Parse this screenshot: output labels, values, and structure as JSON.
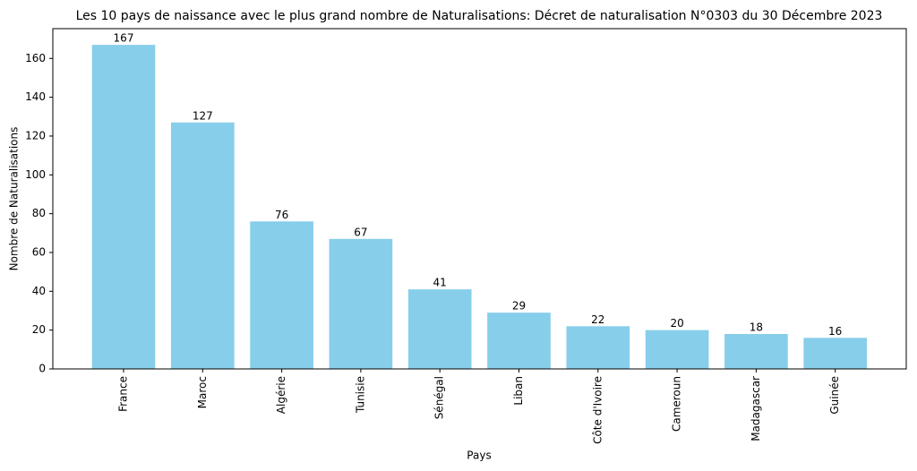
{
  "chart_data": {
    "type": "bar",
    "title": "Les 10 pays de naissance avec le plus grand nombre de Naturalisations: Décret de naturalisation N°0303 du 30 Décembre 2023",
    "x_label": "Pays",
    "y_label": "Nombre de Naturalisations",
    "categories": [
      "France",
      "Maroc",
      "Algérie",
      "Tunisie",
      "Sénégal",
      "Liban",
      "Côte d'Ivoire",
      "Cameroun",
      "Madagascar",
      "Guinée"
    ],
    "values": [
      167,
      127,
      76,
      67,
      41,
      29,
      22,
      20,
      18,
      16
    ],
    "color": "#87ceeb",
    "ylim": [
      0,
      175.35
    ],
    "yticks": [
      0,
      20,
      40,
      60,
      80,
      100,
      120,
      140,
      160
    ]
  }
}
